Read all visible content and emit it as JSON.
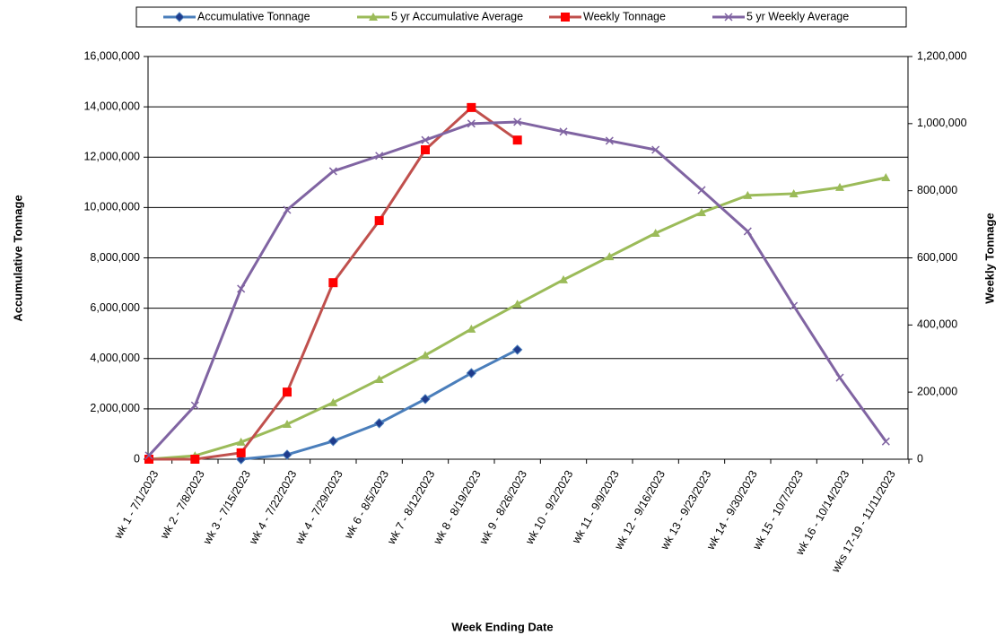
{
  "chart_data": {
    "type": "line",
    "x_label": "Week Ending Date",
    "y_label": "Accumulative Tonnage",
    "y2_label": "Weekly Tonnage",
    "categories": [
      "wk 1 - 7/1/2023",
      "wk 2 - 7/8/2023",
      "wk 3 - 7/15/2023",
      "wk 4 - 7/22/2023",
      "wk 4 - 7/29/2023",
      "wk 6 - 8/5/2023",
      "wk 7 - 8/12/2023",
      "wk 8 - 8/19/2023",
      "wk 9 - 8/26/2023",
      "wk 10 - 9/2/2023",
      "wk 11 - 9/9/2023",
      "wk 12 - 9/16/2023",
      "wk 13 - 9/23/2023",
      "wk 14 - 9/30/2023",
      "wk 15 - 10/7/2023",
      "wk 16 - 10/14/2023",
      "wks 17-19 - 11/11/2023"
    ],
    "series": [
      {
        "name": "Accumulative Tonnage",
        "color": "#4a7ebb",
        "marker": "diamond",
        "axis": "y",
        "values": [
          null,
          null,
          0,
          180000,
          720000,
          1430000,
          2390000,
          3420000,
          4350000,
          null,
          null,
          null,
          null,
          null,
          null,
          null,
          null
        ]
      },
      {
        "name": "5 yr Accumulative Average",
        "color": "#9bbb59",
        "marker": "triangle",
        "axis": "y",
        "values": [
          0,
          140000,
          680000,
          1390000,
          2250000,
          3170000,
          4130000,
          5170000,
          6160000,
          7130000,
          8050000,
          8980000,
          9800000,
          10480000,
          10550000,
          10800000,
          11190000
        ]
      },
      {
        "name": "Weekly Tonnage",
        "color": "#c0504d",
        "marker": "square",
        "axis": "y2",
        "values": [
          0,
          0,
          19000,
          200000,
          526000,
          711000,
          922000,
          1048000,
          951000,
          null,
          null,
          null,
          null,
          null,
          null,
          null,
          null
        ]
      },
      {
        "name": "5 yr Weekly Average",
        "color": "#8064a2",
        "marker": "x",
        "axis": "y2",
        "values": [
          11000,
          160000,
          508000,
          743000,
          858000,
          904000,
          951000,
          1000000,
          1005000,
          976000,
          949000,
          922000,
          802000,
          679000,
          457000,
          243000,
          53000
        ]
      }
    ],
    "ylim": [
      0,
      16000000
    ],
    "yticks": [
      0,
      {
        "value": 2000000,
        "label": "2,000,000"
      },
      {
        "value": 4000000,
        "label": "4,000,000"
      },
      {
        "value": 6000000,
        "label": "6,000,000"
      },
      {
        "value": 8000000,
        "label": "8,000,000"
      },
      {
        "value": 10000000,
        "label": "10,000,000"
      },
      {
        "value": 12000000,
        "label": "12,000,000"
      },
      {
        "value": 14000000,
        "label": "14,000,000"
      },
      {
        "value": 16000000,
        "label": "16,000,000"
      }
    ],
    "y2lim": [
      0,
      1200000
    ],
    "y2ticks": [
      0,
      {
        "value": 200000,
        "label": "200,000"
      },
      {
        "value": 400000,
        "label": "400,000"
      },
      {
        "value": 600000,
        "label": "600,000"
      },
      {
        "value": 800000,
        "label": "800,000"
      },
      {
        "value": 1000000,
        "label": "1,000,000"
      },
      {
        "value": 1200000,
        "label": "1,200,000"
      }
    ],
    "grid": true,
    "legend": "top"
  }
}
